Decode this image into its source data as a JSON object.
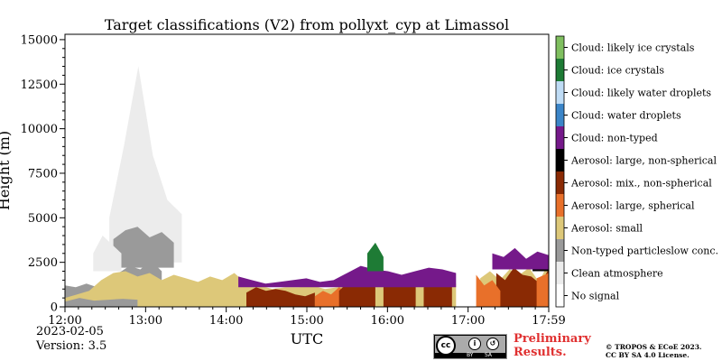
{
  "chart_data": {
    "type": "heatmap",
    "title": "Target classifications (V2) from pollyxt_cyp at Limassol",
    "xlabel": "UTC",
    "ylabel": "Height (m)",
    "x_range_hours": [
      12.0,
      18.0
    ],
    "ylim": [
      0,
      15300
    ],
    "x_ticks": [
      {
        "value": 12.0,
        "label": "12:00"
      },
      {
        "value": 13.0,
        "label": "13:00"
      },
      {
        "value": 14.0,
        "label": "14:00"
      },
      {
        "value": 15.0,
        "label": "15:00"
      },
      {
        "value": 16.0,
        "label": "16:00"
      },
      {
        "value": 17.0,
        "label": "17:00"
      },
      {
        "value": 18.0,
        "label": "17:59"
      }
    ],
    "y_ticks": [
      0,
      2500,
      5000,
      7500,
      10000,
      12500,
      15000
    ],
    "y_tick_labels": [
      "0",
      "2500",
      "5000",
      "7500",
      "10000",
      "12500",
      "15000"
    ],
    "legend_position": "right",
    "classes": [
      {
        "code": 11,
        "label": "Cloud: likely ice crystals",
        "color": "#7fbf5f"
      },
      {
        "code": 10,
        "label": "Cloud: ice crystals",
        "color": "#1e7b35"
      },
      {
        "code": 9,
        "label": "Cloud: likely water droplets",
        "color": "#bfdcf5"
      },
      {
        "code": 8,
        "label": "Cloud: water droplets",
        "color": "#3b85c8"
      },
      {
        "code": 7,
        "label": "Cloud: non-typed",
        "color": "#75198a"
      },
      {
        "code": 6,
        "label": "Aerosol: large, non-spherical",
        "color": "#000000"
      },
      {
        "code": 5,
        "label": "Aerosol: mix., non-spherical",
        "color": "#8a2a04"
      },
      {
        "code": 4,
        "label": "Aerosol: large, spherical",
        "color": "#e8702a"
      },
      {
        "code": 3,
        "label": "Aerosol: small",
        "color": "#ddc879"
      },
      {
        "code": 2,
        "label": "Non-typed particleslow conc.",
        "color": "#9a9a9a"
      },
      {
        "code": 1,
        "label": "Clean atmosphere",
        "color": "#ececec"
      },
      {
        "code": 0,
        "label": "No signal",
        "color": "#ffffff"
      }
    ],
    "regions": [
      {
        "class": 2,
        "t0": 12.0,
        "t1": 13.2,
        "h_bottom": 0,
        "h_top": [
          1200,
          1100,
          1300,
          1100,
          1500,
          1900,
          2300,
          2100,
          2600,
          2000
        ]
      },
      {
        "class": 3,
        "t0": 12.0,
        "t1": 14.25,
        "h_bottom": 0,
        "h_top": [
          500,
          700,
          900,
          1500,
          1900,
          2000,
          1700,
          1900,
          1500,
          1800,
          1600,
          1400,
          1700,
          1500,
          1900,
          1300
        ]
      },
      {
        "class": 2,
        "t0": 12.0,
        "t1": 12.9,
        "h_bottom": 0,
        "h_top": [
          300,
          500,
          350,
          400,
          450,
          400
        ]
      },
      {
        "class": 1,
        "t0": 12.55,
        "t1": 13.45,
        "h_bottom": 2500,
        "h_top": [
          5000,
          9000,
          13500,
          8500,
          6000,
          5200
        ]
      },
      {
        "class": 2,
        "t0": 12.6,
        "t1": 13.35,
        "h_bottom": 2200,
        "h_top": [
          3800,
          4300,
          4500,
          3900,
          4200,
          3600
        ]
      },
      {
        "class": 1,
        "t0": 12.35,
        "t1": 12.7,
        "h_bottom": 2000,
        "h_top": [
          3000,
          4000,
          3500,
          3000
        ]
      },
      {
        "class": 3,
        "t0": 14.25,
        "t1": 16.85,
        "h_bottom": 0,
        "h_top": [
          1300,
          1200,
          1000,
          1100,
          1100,
          1200,
          1000,
          1100,
          1500,
          1800,
          1500,
          1300,
          1200,
          1200,
          1200,
          1300,
          1300
        ]
      },
      {
        "class": 5,
        "t0": 14.25,
        "t1": 15.1,
        "h_bottom": 0,
        "h_top": [
          800,
          1100,
          900,
          1000,
          900,
          700,
          600,
          800
        ]
      },
      {
        "class": 4,
        "t0": 15.1,
        "t1": 15.5,
        "h_bottom": 0,
        "h_top": [
          600,
          900,
          700,
          1100,
          800
        ]
      },
      {
        "class": 5,
        "t0": 15.4,
        "t1": 15.85,
        "h_bottom": 0,
        "h_top": [
          900,
          1400,
          1200,
          1500,
          1100
        ]
      },
      {
        "class": 5,
        "t0": 15.95,
        "t1": 16.35,
        "h_bottom": 0,
        "h_top": [
          1600,
          1800,
          1500,
          1300,
          1400
        ]
      },
      {
        "class": 5,
        "t0": 16.45,
        "t1": 16.8,
        "h_bottom": 0,
        "h_top": [
          1100,
          1300,
          1500,
          1200
        ]
      },
      {
        "class": 7,
        "t0": 14.15,
        "t1": 16.85,
        "h_bottom": 1100,
        "h_top": [
          1700,
          1500,
          1300,
          1400,
          1500,
          1600,
          1400,
          1500,
          1900,
          2300,
          2100,
          2000,
          1800,
          2000,
          2200,
          2100,
          1900
        ]
      },
      {
        "class": 10,
        "t0": 15.75,
        "t1": 15.95,
        "h_bottom": 2000,
        "h_top": [
          3000,
          3600,
          2800
        ]
      },
      {
        "class": 3,
        "t0": 17.15,
        "t1": 18.0,
        "h_bottom": 0,
        "h_top": [
          1600,
          2000,
          1500,
          2100,
          1800,
          2200,
          1400,
          2500
        ]
      },
      {
        "class": 5,
        "t0": 17.35,
        "t1": 18.0,
        "h_bottom": 0,
        "h_top": [
          1900,
          1500,
          2200,
          1800,
          1700,
          1300,
          2100
        ]
      },
      {
        "class": 4,
        "t0": 17.1,
        "t1": 17.4,
        "h_bottom": 0,
        "h_top": [
          1800,
          1200,
          1500,
          900
        ]
      },
      {
        "class": 4,
        "t0": 17.85,
        "t1": 18.0,
        "h_bottom": 0,
        "h_top": [
          1600,
          1900
        ]
      },
      {
        "class": 6,
        "t0": 17.8,
        "t1": 18.0,
        "h_bottom": 2000,
        "h_top": [
          2600,
          2400,
          2900
        ]
      },
      {
        "class": 7,
        "t0": 17.3,
        "t1": 18.0,
        "h_bottom": 2100,
        "h_top": [
          3000,
          2800,
          3300,
          2700,
          3100,
          2900
        ]
      }
    ]
  },
  "footer": {
    "date": "2023-02-05",
    "version": "Version: 3.5",
    "preliminary_line1": "Preliminary",
    "preliminary_line2": "Results.",
    "copyright_line1": "© TROPOS & ECoE 2023.",
    "copyright_line2": "CC BY SA 4.0 License.",
    "cc_badge_text": "cc",
    "cc_by_text": "BY",
    "cc_sa_text": "SA"
  }
}
